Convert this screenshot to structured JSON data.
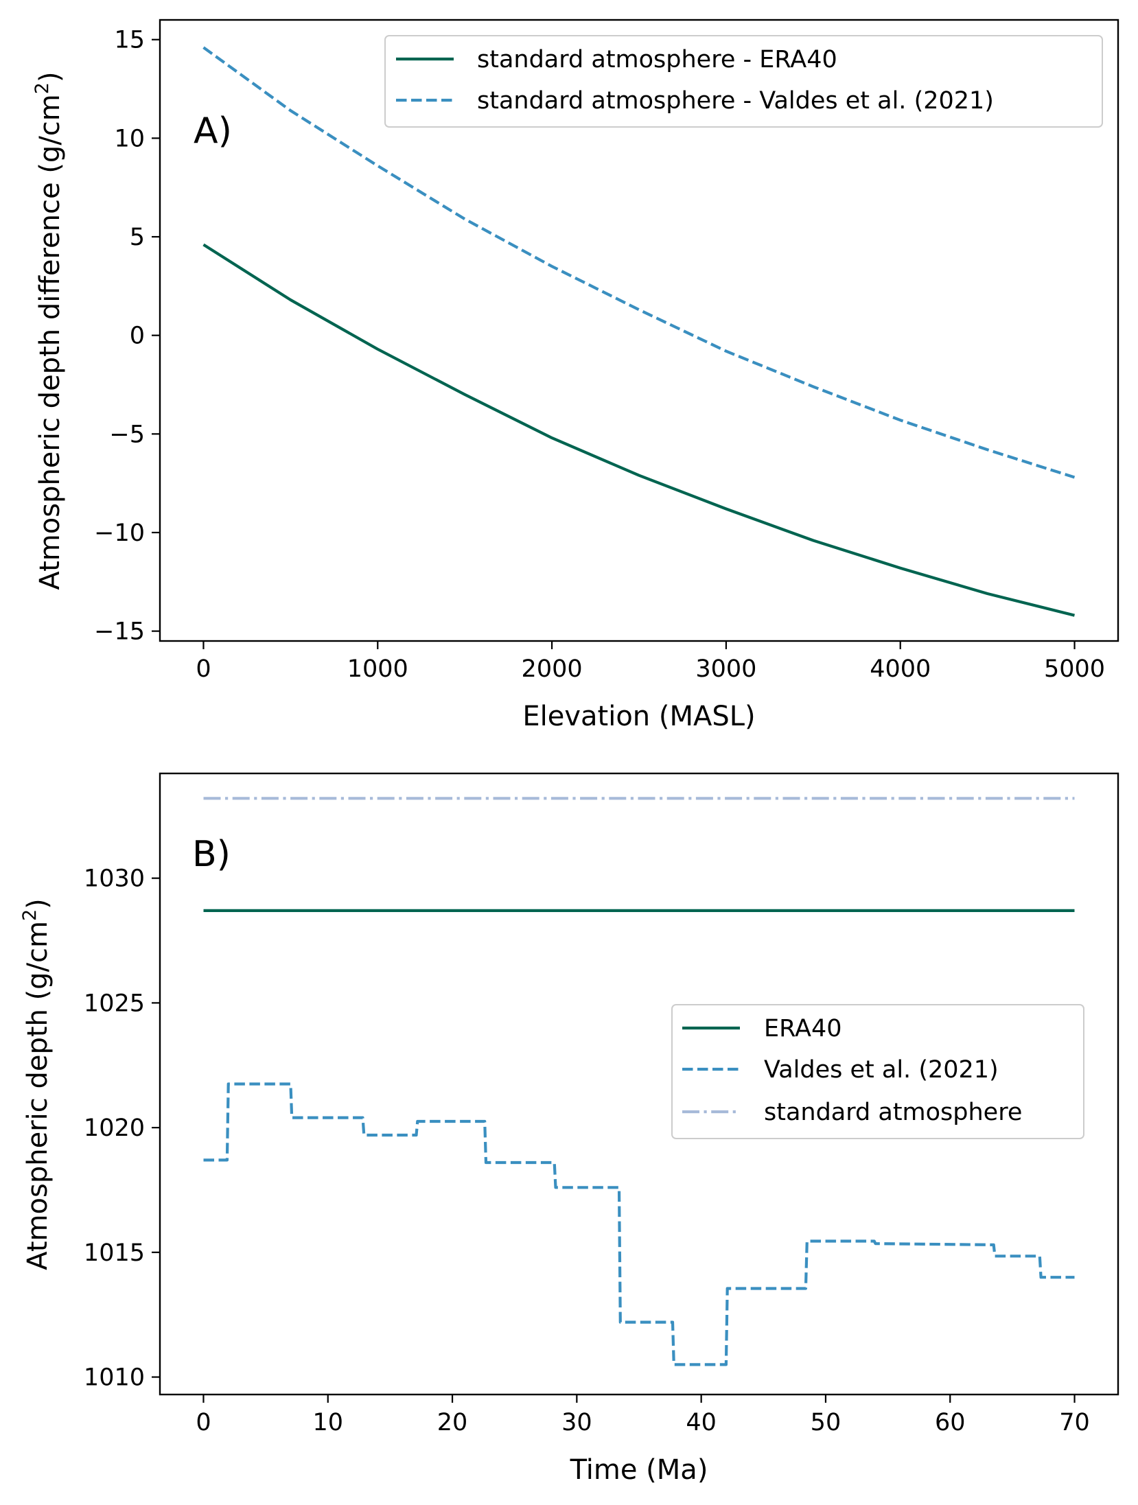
{
  "colors": {
    "era40": "#006450",
    "valdes": "#3a8fc0",
    "standard": "#a7bad9"
  },
  "chart_data": [
    {
      "type": "line",
      "panel_label": "A)",
      "xlabel": "Elevation (MASL)",
      "ylabel": "Atmospheric depth difference (g/cm",
      "ylabel_sup": "2",
      "ylabel_end": ")",
      "xlim": [
        -250,
        5250
      ],
      "ylim": [
        -15.5,
        16
      ],
      "xticks": [
        0,
        1000,
        2000,
        3000,
        4000,
        5000
      ],
      "xtick_labels": [
        "0",
        "1000",
        "2000",
        "3000",
        "4000",
        "5000"
      ],
      "yticks": [
        15,
        10,
        5,
        0,
        -5,
        -10,
        -15
      ],
      "ytick_labels": [
        "15",
        "10",
        "5",
        "0",
        "−5",
        "−10",
        "−15"
      ],
      "legend_position": "top-right",
      "series": [
        {
          "name": "standard atmosphere - ERA40",
          "style": "solid",
          "color_key": "era40",
          "x": [
            0,
            500,
            1000,
            1500,
            2000,
            2500,
            3000,
            3500,
            4000,
            4500,
            5000
          ],
          "y": [
            4.6,
            1.8,
            -0.7,
            -3.0,
            -5.2,
            -7.1,
            -8.8,
            -10.4,
            -11.8,
            -13.1,
            -14.2
          ]
        },
        {
          "name": "standard atmosphere - Valdes et al. (2021)",
          "style": "dashed",
          "color_key": "valdes",
          "x": [
            0,
            500,
            1000,
            1500,
            2000,
            2500,
            3000,
            3500,
            4000,
            4500,
            5000
          ],
          "y": [
            14.6,
            11.4,
            8.6,
            5.9,
            3.5,
            1.3,
            -0.8,
            -2.6,
            -4.3,
            -5.8,
            -7.2
          ]
        }
      ]
    },
    {
      "type": "line",
      "panel_label": "B)",
      "xlabel": "Time (Ma)",
      "ylabel": "Atmospheric depth (g/cm",
      "ylabel_sup": "2",
      "ylabel_end": ")",
      "xlim": [
        -3.5,
        73.5
      ],
      "ylim": [
        1009.3,
        1034.2
      ],
      "xticks": [
        0,
        10,
        20,
        30,
        40,
        50,
        60,
        70
      ],
      "xtick_labels": [
        "0",
        "10",
        "20",
        "30",
        "40",
        "50",
        "60",
        "70"
      ],
      "yticks": [
        1030,
        1025,
        1020,
        1015,
        1010
      ],
      "ytick_labels": [
        "1030",
        "1025",
        "1020",
        "1015",
        "1010"
      ],
      "legend_position": "center-right",
      "series": [
        {
          "name": "ERA40",
          "style": "solid",
          "color_key": "era40",
          "x": [
            0,
            70
          ],
          "y": [
            1028.7,
            1028.7
          ]
        },
        {
          "name": "Valdes et al. (2021)",
          "style": "dashed",
          "color_key": "valdes",
          "x": [
            0,
            1.9,
            2.0,
            7.0,
            7.1,
            12.8,
            12.9,
            17.1,
            17.2,
            22.6,
            22.7,
            28.2,
            28.3,
            33.4,
            33.5,
            37.7,
            37.8,
            42.0,
            42.1,
            48.4,
            48.5,
            53.9,
            54.0,
            63.5,
            63.6,
            67.2,
            67.3,
            70.0
          ],
          "y": [
            1018.7,
            1018.7,
            1021.75,
            1021.75,
            1020.4,
            1020.4,
            1019.7,
            1019.7,
            1020.25,
            1020.25,
            1018.6,
            1018.6,
            1017.6,
            1017.6,
            1012.2,
            1012.2,
            1010.5,
            1010.5,
            1013.55,
            1013.55,
            1015.45,
            1015.45,
            1015.35,
            1015.3,
            1014.85,
            1014.85,
            1014.0,
            1014.0
          ]
        },
        {
          "name": "standard atmosphere",
          "style": "dashdot",
          "color_key": "standard",
          "x": [
            0,
            70
          ],
          "y": [
            1033.2,
            1033.2
          ]
        }
      ]
    }
  ]
}
